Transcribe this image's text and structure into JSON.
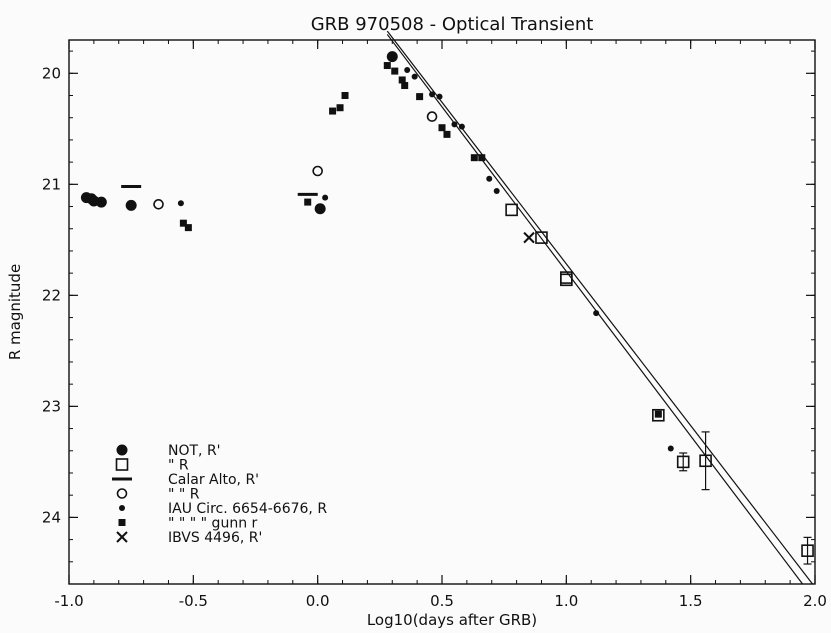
{
  "chart_data": {
    "type": "scatter",
    "title": "GRB 970508 - Optical Transient",
    "xlabel": "Log10(days after GRB)",
    "ylabel": "R magnitude",
    "xlim": [
      -1.0,
      2.0
    ],
    "ylim": [
      24.6,
      19.7
    ],
    "x_ticks": [
      "-1.0",
      "-0.5",
      "0.0",
      "0.5",
      "1.0",
      "1.5",
      "2.0"
    ],
    "y_ticks": [
      "20",
      "21",
      "22",
      "23",
      "24"
    ],
    "series": [
      {
        "name": "NOT, R'",
        "marker": "filled-circle",
        "points": [
          [
            -0.93,
            21.12
          ],
          [
            -0.91,
            21.13
          ],
          [
            -0.9,
            21.15
          ],
          [
            -0.87,
            21.16
          ],
          [
            -0.75,
            21.19
          ],
          [
            0.01,
            21.22
          ],
          [
            0.3,
            19.85
          ]
        ]
      },
      {
        "name": "\" R",
        "marker": "open-square",
        "points": [
          [
            0.78,
            21.23
          ],
          [
            0.9,
            21.48
          ],
          [
            1.0,
            21.84
          ],
          [
            1.0,
            21.86
          ],
          [
            1.37,
            23.08
          ],
          [
            1.47,
            23.5
          ],
          [
            1.56,
            23.49
          ],
          [
            1.97,
            24.3
          ]
        ],
        "errors": [
          0,
          0,
          0,
          0,
          0,
          0.08,
          0.26,
          0.12
        ]
      },
      {
        "name": "Calar Alto, R'",
        "marker": "horizontal-bar",
        "points": [
          [
            -0.75,
            21.02
          ],
          [
            -0.04,
            21.09
          ]
        ]
      },
      {
        "name": "\" R",
        "marker": "open-circle",
        "points": [
          [
            -0.64,
            21.18
          ],
          [
            0.0,
            20.88
          ],
          [
            0.46,
            20.39
          ]
        ]
      },
      {
        "name": "IAU Circ. 6654-6676, R",
        "marker": "small-dot",
        "points": [
          [
            -0.55,
            21.17
          ],
          [
            0.03,
            21.12
          ],
          [
            0.36,
            19.97
          ],
          [
            0.39,
            20.03
          ],
          [
            0.46,
            20.19
          ],
          [
            0.49,
            20.21
          ],
          [
            0.55,
            20.46
          ],
          [
            0.58,
            20.48
          ],
          [
            0.69,
            20.95
          ],
          [
            0.72,
            21.06
          ],
          [
            1.12,
            22.16
          ],
          [
            1.42,
            23.38
          ]
        ]
      },
      {
        "name": "\" gunn r",
        "marker": "filled-square",
        "points": [
          [
            -0.54,
            21.35
          ],
          [
            -0.52,
            21.39
          ],
          [
            -0.04,
            21.16
          ],
          [
            0.06,
            20.34
          ],
          [
            0.09,
            20.31
          ],
          [
            0.11,
            20.2
          ],
          [
            0.28,
            19.93
          ],
          [
            0.31,
            19.98
          ],
          [
            0.34,
            20.06
          ],
          [
            0.35,
            20.11
          ],
          [
            0.41,
            20.21
          ],
          [
            0.5,
            20.49
          ],
          [
            0.52,
            20.55
          ],
          [
            0.63,
            20.76
          ],
          [
            0.66,
            20.76
          ],
          [
            1.37,
            23.07
          ]
        ]
      },
      {
        "name": "IBVS 4496, R'",
        "marker": "cross",
        "points": [
          [
            0.85,
            21.48
          ]
        ]
      }
    ],
    "fit_lines": [
      {
        "x": [
          0.28,
          1.95
        ],
        "y": [
          19.65,
          24.6
        ]
      },
      {
        "x": [
          0.28,
          1.99
        ],
        "y": [
          19.62,
          24.6
        ]
      }
    ],
    "legend": [
      {
        "marker": "filled-circle",
        "label": "NOT, R'"
      },
      {
        "marker": "open-square",
        "label": "\"   R"
      },
      {
        "marker": "horizontal-bar",
        "label": "Calar  Alto,    R'"
      },
      {
        "marker": "open-circle",
        "label": "\"         \"         R"
      },
      {
        "marker": "small-dot",
        "label": "IAU  Circ.  6654-6676,      R"
      },
      {
        "marker": "filled-square",
        "label": "\"       \"        \"         \"       gunn  r"
      },
      {
        "marker": "cross",
        "label": "IBVS  4496,  R'"
      }
    ],
    "legend_position": "bottom-left",
    "grid": false
  }
}
